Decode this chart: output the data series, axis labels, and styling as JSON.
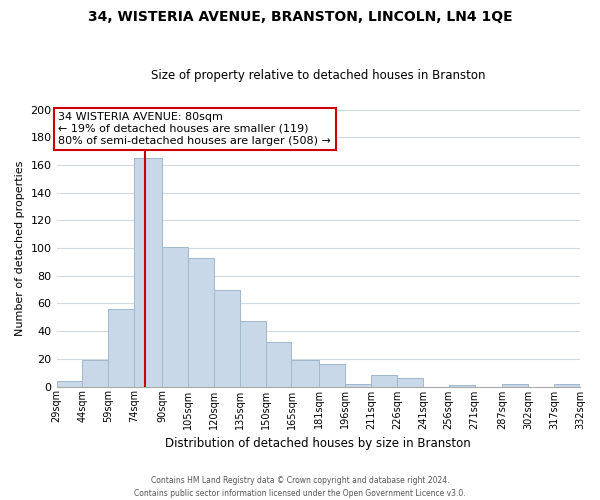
{
  "title": "34, WISTERIA AVENUE, BRANSTON, LINCOLN, LN4 1QE",
  "subtitle": "Size of property relative to detached houses in Branston",
  "xlabel": "Distribution of detached houses by size in Branston",
  "ylabel": "Number of detached properties",
  "bar_color": "#c8d8e8",
  "bar_edge_color": "#a0b8cc",
  "background_color": "#ffffff",
  "grid_color": "#d0d8e0",
  "vline_color": "#cc0000",
  "vline_x": 80,
  "annotation_title": "34 WISTERIA AVENUE: 80sqm",
  "annotation_line1": "← 19% of detached houses are smaller (119)",
  "annotation_line2": "80% of semi-detached houses are larger (508) →",
  "bin_edges": [
    29,
    44,
    59,
    74,
    90,
    105,
    120,
    135,
    150,
    165,
    181,
    196,
    211,
    226,
    241,
    256,
    271,
    287,
    302,
    317,
    332
  ],
  "bin_labels": [
    "29sqm",
    "44sqm",
    "59sqm",
    "74sqm",
    "90sqm",
    "105sqm",
    "120sqm",
    "135sqm",
    "150sqm",
    "165sqm",
    "181sqm",
    "196sqm",
    "211sqm",
    "226sqm",
    "241sqm",
    "256sqm",
    "271sqm",
    "287sqm",
    "302sqm",
    "317sqm",
    "332sqm"
  ],
  "counts": [
    4,
    19,
    56,
    165,
    101,
    93,
    70,
    47,
    32,
    19,
    16,
    2,
    8,
    6,
    0,
    1,
    0,
    2,
    0,
    2
  ],
  "ylim": [
    0,
    200
  ],
  "yticks": [
    0,
    20,
    40,
    60,
    80,
    100,
    120,
    140,
    160,
    180,
    200
  ],
  "footer_line1": "Contains HM Land Registry data © Crown copyright and database right 2024.",
  "footer_line2": "Contains public sector information licensed under the Open Government Licence v3.0."
}
